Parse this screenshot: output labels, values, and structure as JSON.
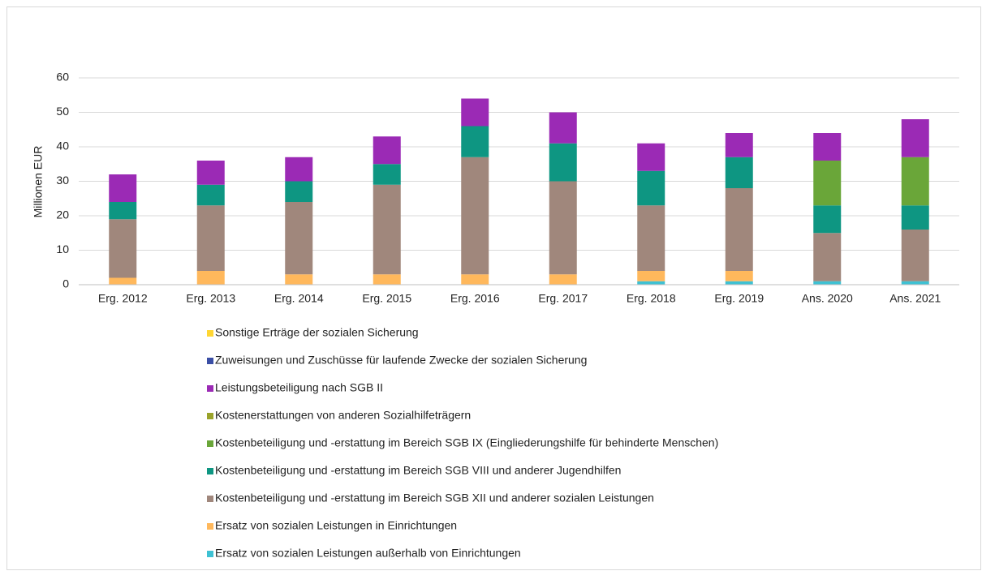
{
  "chart_data": {
    "type": "stacked_bar",
    "y_label": "Millionen EUR",
    "categories": [
      "Erg. 2012",
      "Erg. 2013",
      "Erg. 2014",
      "Erg. 2015",
      "Erg. 2016",
      "Erg. 2017",
      "Erg. 2018",
      "Erg. 2019",
      "Ans. 2020",
      "Ans. 2021"
    ],
    "series": [
      {
        "name": "Ersatz von sozialen Leistungen außerhalb von Einrichtungen",
        "color": "#3ec1d3",
        "values": [
          0,
          0,
          0,
          0,
          0,
          0,
          1,
          1,
          1,
          1
        ]
      },
      {
        "name": "Ersatz von sozialen Leistungen in Einrichtungen",
        "color": "#ffb85c",
        "values": [
          2,
          4,
          3,
          3,
          3,
          3,
          3,
          3,
          0,
          0
        ]
      },
      {
        "name": "Kostenbeteiligung und -erstattung im Bereich SGB XII und anderer sozialen Leistungen",
        "color": "#a0877c",
        "values": [
          17,
          19,
          21,
          26,
          34,
          27,
          19,
          24,
          14,
          15
        ]
      },
      {
        "name": "Kostenbeteiligung und -erstattung im Bereich SGB VIII und anderer Jugendhilfen",
        "color": "#0e9682",
        "values": [
          5,
          6,
          6,
          6,
          9,
          11,
          10,
          9,
          8,
          7
        ]
      },
      {
        "name": "Kostenbeteiligung und -erstattung im Bereich SGB IX (Eingliederungshilfe für behinderte Menschen)",
        "color": "#6aa639",
        "values": [
          0,
          0,
          0,
          0,
          0,
          0,
          0,
          0,
          13,
          14
        ]
      },
      {
        "name": "Kostenerstattungen von anderen Sozialhilfeträgern",
        "color": "#9aa32a",
        "values": [
          0,
          0,
          0,
          0,
          0,
          0,
          0,
          0,
          0,
          0
        ]
      },
      {
        "name": "Leistungsbeteiligung nach SGB II",
        "color": "#9b2ab5",
        "values": [
          8,
          7,
          7,
          8,
          8,
          9,
          8,
          7,
          8,
          11
        ]
      },
      {
        "name": "Zuweisungen und Zuschüsse für laufende Zwecke der sozialen Sicherung",
        "color": "#3a4ea5",
        "values": [
          0,
          0,
          0,
          0,
          0,
          0,
          0,
          0,
          0,
          0
        ]
      },
      {
        "name": "Sonstige Erträge der sozialen Sicherung",
        "color": "#ffd633",
        "values": [
          0,
          0,
          0,
          0,
          0,
          0,
          0,
          0,
          0,
          0
        ]
      }
    ],
    "ylim": [
      0,
      60
    ],
    "yticks": [
      0,
      10,
      20,
      30,
      40,
      50,
      60
    ],
    "grid": true,
    "legend": "bottom"
  }
}
